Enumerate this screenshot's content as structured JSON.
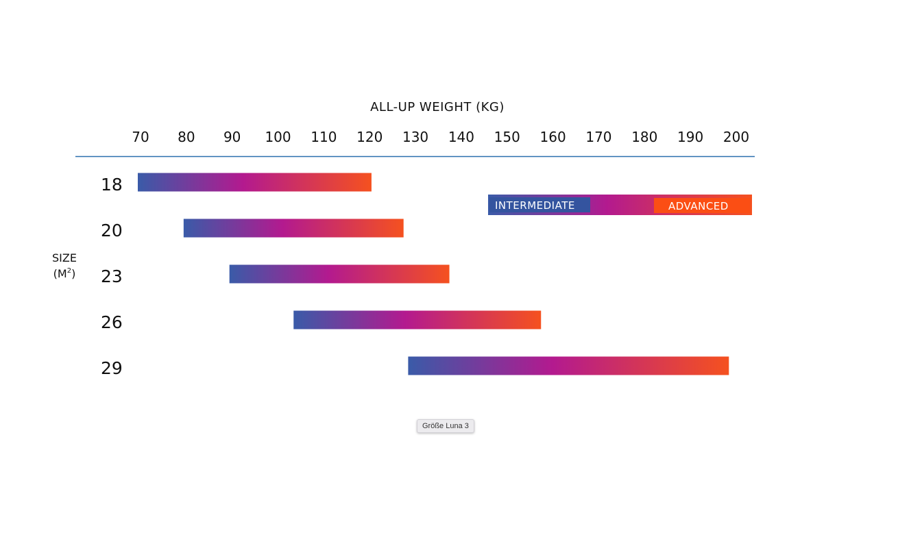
{
  "chart_data": {
    "type": "bar",
    "orientation": "horizontal-range",
    "title": "",
    "xlabel": "ALL-UP WEIGHT (KG)",
    "ylabel_line1": "SIZE",
    "ylabel_line2": "(M",
    "ylabel_sup": "2",
    "ylabel_close": ")",
    "xlim": [
      70,
      200
    ],
    "x_ticks": [
      70,
      80,
      90,
      100,
      110,
      120,
      130,
      140,
      150,
      160,
      170,
      180,
      190,
      200
    ],
    "categories": [
      "18",
      "20",
      "23",
      "26",
      "29"
    ],
    "ranges": [
      {
        "size": "18",
        "min": 70,
        "max": 121
      },
      {
        "size": "20",
        "min": 80,
        "max": 128
      },
      {
        "size": "23",
        "min": 90,
        "max": 138
      },
      {
        "size": "26",
        "min": 104,
        "max": 158
      },
      {
        "size": "29",
        "min": 129,
        "max": 199
      }
    ],
    "legend": {
      "placement": "top-right",
      "start_label": "INTERMEDIATE",
      "end_label": "ADVANCED"
    },
    "colors": {
      "gradient_start": "#3a5ba8",
      "gradient_mid": "#b31a8f",
      "gradient_end": "#f5511f",
      "axis_line": "#2a6fad",
      "intermediate_box": "#34549f",
      "advanced_box": "#fb4e14"
    },
    "grid": false
  },
  "caption": {
    "text": "Größe Luna 3"
  }
}
